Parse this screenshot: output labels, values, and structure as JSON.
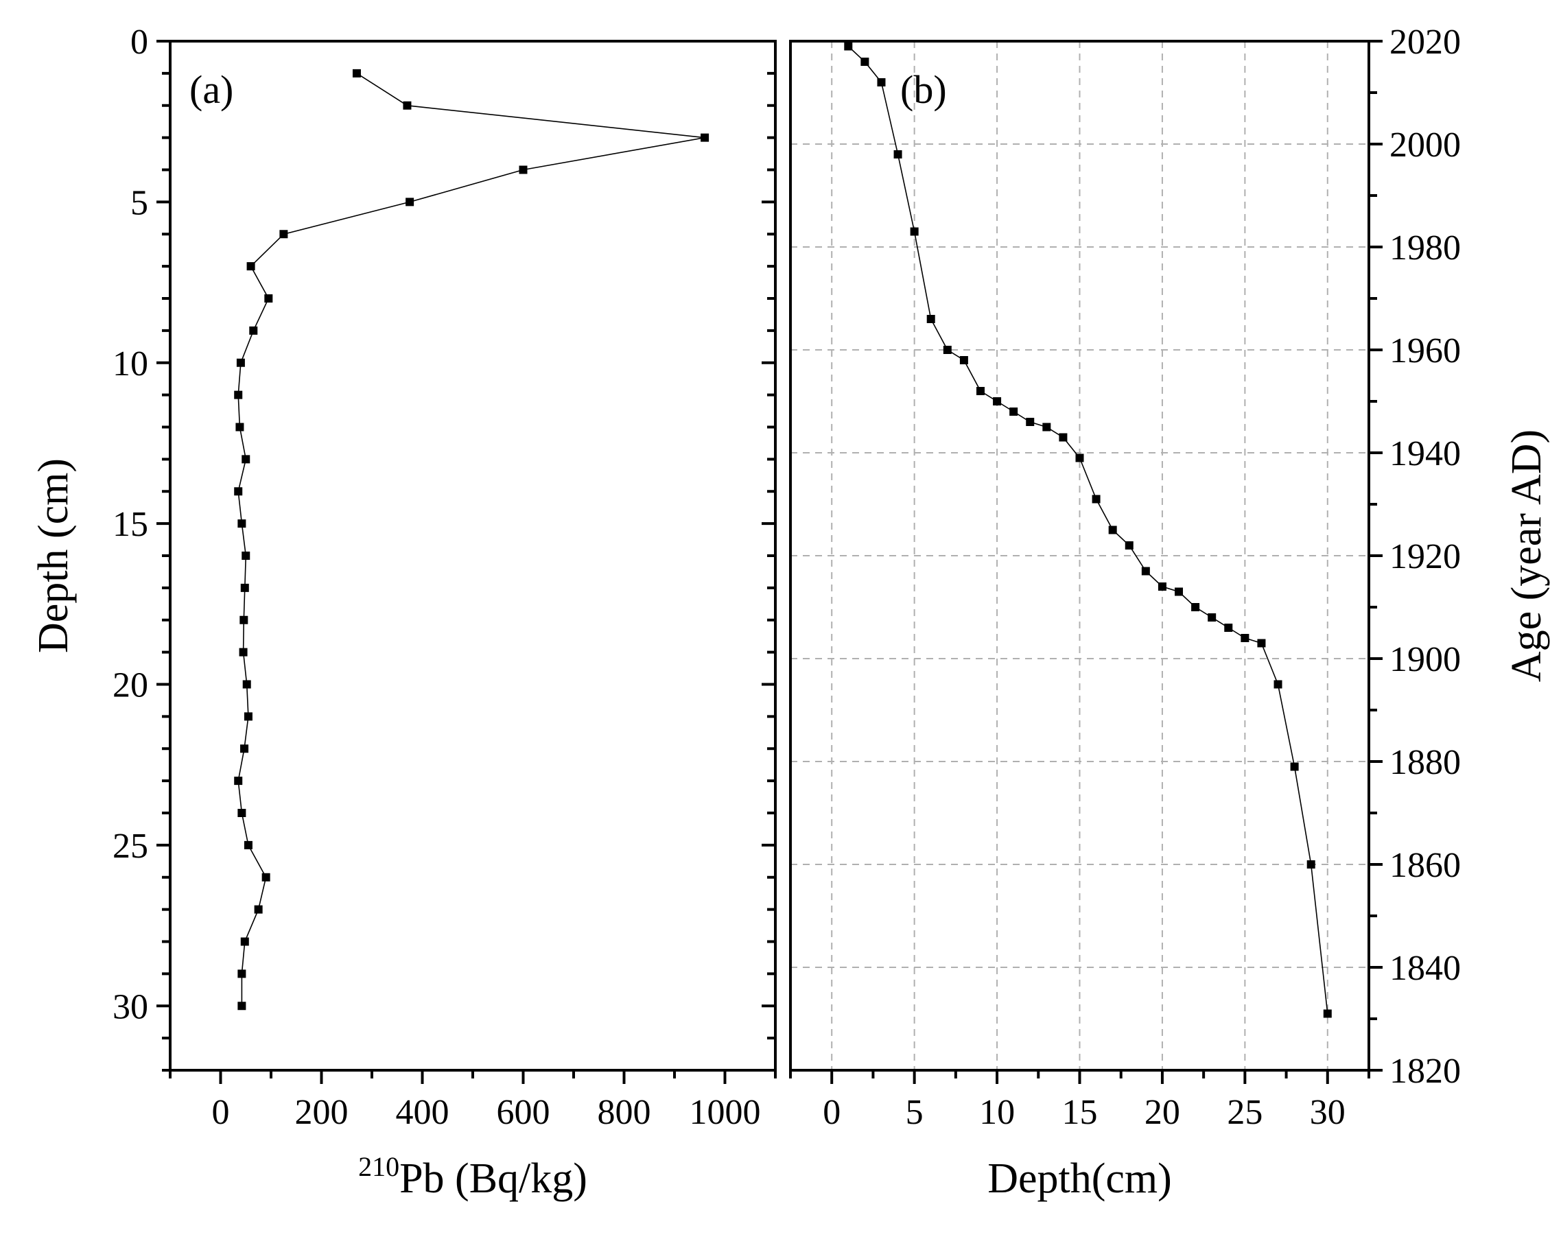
{
  "chart_data": [
    {
      "panel": "a",
      "type": "line",
      "panel_label": "(a)",
      "xlabel_sup": "210",
      "xlabel_main": "Pb (Bq/kg)",
      "ylabel": "Depth (cm)",
      "xlim": [
        -100,
        1100
      ],
      "ylim": [
        0,
        32
      ],
      "y_inverted": true,
      "xticks": [
        0,
        200,
        400,
        600,
        800,
        1000
      ],
      "yticks": [
        0,
        5,
        10,
        15,
        20,
        25,
        30
      ],
      "grid": false,
      "series": [
        {
          "name": "210Pb",
          "x": [
            270,
            370,
            960,
            600,
            375,
            125,
            60,
            95,
            65,
            40,
            35,
            38,
            50,
            35,
            42,
            50,
            48,
            46,
            45,
            52,
            55,
            47,
            35,
            42,
            55,
            90,
            75,
            48,
            42,
            42
          ],
          "y": [
            1,
            2,
            3,
            4,
            5,
            6,
            7,
            8,
            9,
            10,
            11,
            12,
            13,
            14,
            15,
            16,
            17,
            18,
            19,
            20,
            21,
            22,
            23,
            24,
            25,
            26,
            27,
            28,
            29,
            30
          ]
        }
      ]
    },
    {
      "panel": "b",
      "type": "line",
      "panel_label": "(b)",
      "xlabel": "Depth(cm)",
      "ylabel": "Age (year AD)",
      "xlim": [
        -2.5,
        32.5
      ],
      "ylim": [
        1820,
        2020
      ],
      "xticks": [
        0,
        5,
        10,
        15,
        20,
        25,
        30
      ],
      "yticks": [
        1820,
        1840,
        1860,
        1880,
        1900,
        1920,
        1940,
        1960,
        1980,
        2000,
        2020
      ],
      "grid": true,
      "series": [
        {
          "name": "Age",
          "x": [
            1,
            2,
            3,
            4,
            5,
            6,
            7,
            8,
            9,
            10,
            11,
            12,
            13,
            14,
            15,
            16,
            17,
            18,
            19,
            20,
            21,
            22,
            23,
            24,
            25,
            26,
            27,
            28,
            29,
            30
          ],
          "y": [
            2019,
            2016,
            2012,
            1998,
            1983,
            1966,
            1960,
            1958,
            1952,
            1950,
            1948,
            1946,
            1945,
            1943,
            1939,
            1931,
            1925,
            1922,
            1917,
            1914,
            1913,
            1910,
            1908,
            1906,
            1904,
            1903,
            1895,
            1879,
            1860,
            1831
          ]
        }
      ]
    }
  ]
}
